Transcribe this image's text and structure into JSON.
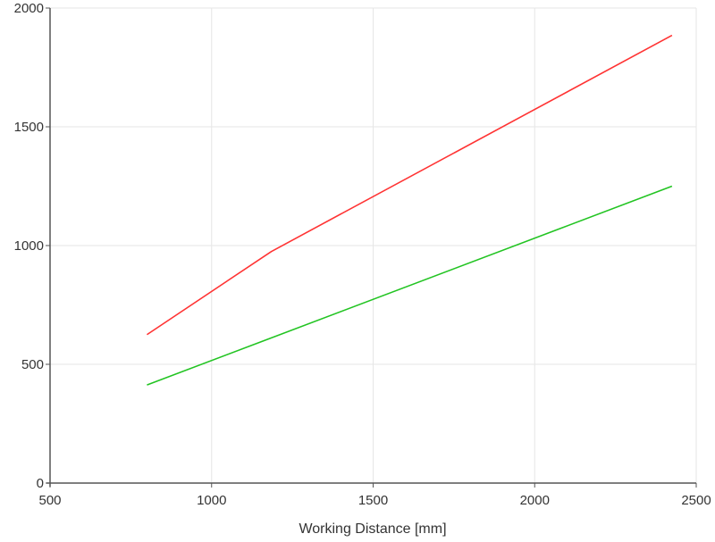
{
  "chart_data": {
    "type": "line",
    "title": "",
    "xlabel": "Working Distance [mm]",
    "ylabel": "",
    "xlim": [
      500,
      2500
    ],
    "ylim": [
      0,
      2000
    ],
    "x_ticks": [
      500,
      1000,
      1500,
      2000,
      2500
    ],
    "y_ticks": [
      0,
      500,
      1000,
      1500,
      2000
    ],
    "grid": true,
    "legend": "none",
    "series": [
      {
        "color": "#ff3333",
        "points": [
          [
            800,
            625
          ],
          [
            1185,
            975
          ],
          [
            2425,
            1885
          ]
        ]
      },
      {
        "color": "#22c422",
        "points": [
          [
            800,
            413
          ],
          [
            2425,
            1250
          ]
        ]
      }
    ]
  }
}
